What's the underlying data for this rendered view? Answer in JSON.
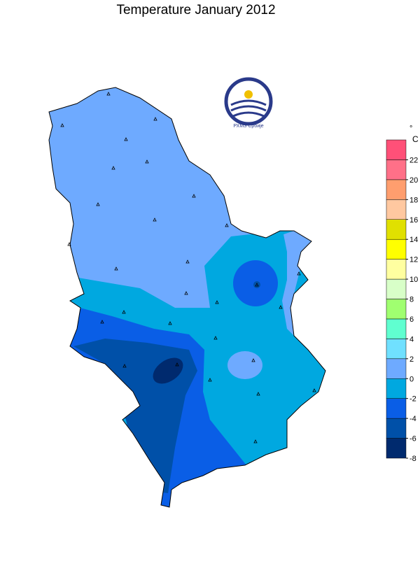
{
  "title": "Temperature  January  2012",
  "logo": {
    "text": "РХМЗ Србије"
  },
  "legend": {
    "unit_symbol": "°",
    "unit_letter": "C",
    "range": [
      -8,
      24
    ],
    "ticks": [
      -8,
      -6,
      -4,
      -2,
      0,
      2,
      4,
      6,
      8,
      10,
      12,
      14,
      16,
      18,
      20,
      22
    ],
    "colors": [
      "#002a6e",
      "#0050a8",
      "#0a5ee6",
      "#00a8e0",
      "#6eaaff",
      "#70e0ff",
      "#60ffd0",
      "#a0ff70",
      "#d8ffc8",
      "#ffffa0",
      "#ffff00",
      "#e0e000",
      "#ffc8a0",
      "#ff9e6e",
      "#ff7088",
      "#ff5078"
    ]
  }
}
